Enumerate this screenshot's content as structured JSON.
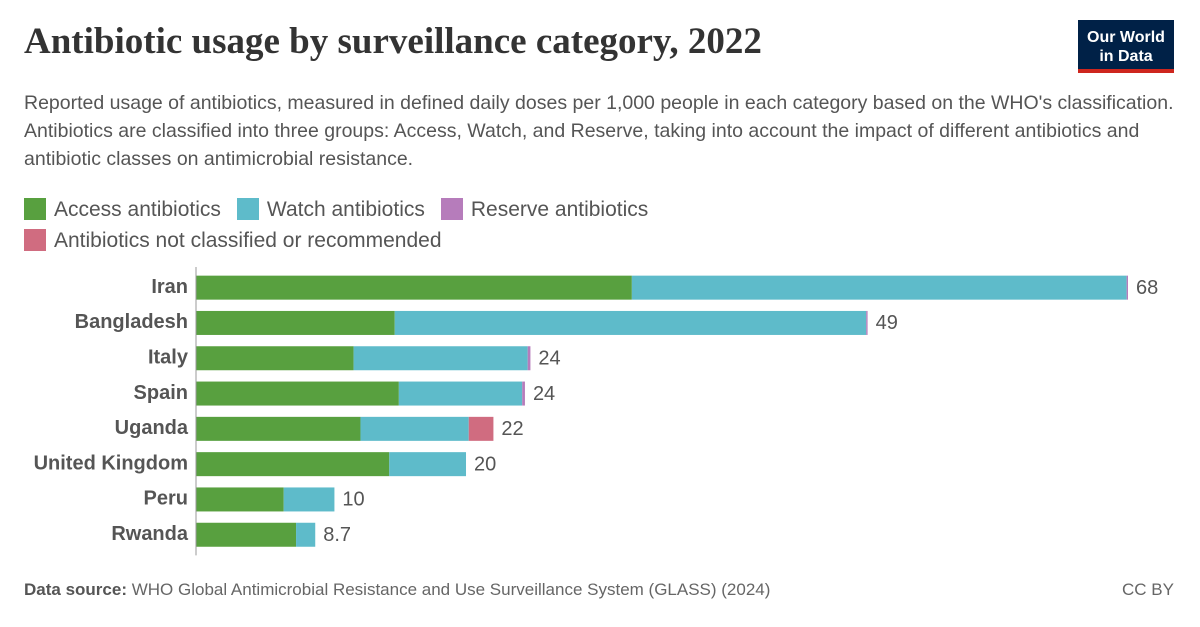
{
  "chart_data": {
    "type": "stacked_bar_horizontal",
    "title": "Antibiotic usage by surveillance category, 2022",
    "subtitle": "Reported usage of antibiotics, measured in defined daily doses per 1,000 people in each category based on the WHO's classification. Antibiotics are classified into three groups: Access, Watch, and Reserve, taking into account the impact of different antibiotics and antibiotic classes on antimicrobial resistance.",
    "logo": "Our World in Data",
    "categories": [
      "Iran",
      "Bangladesh",
      "Italy",
      "Spain",
      "Uganda",
      "United Kingdom",
      "Peru",
      "Rwanda"
    ],
    "series": [
      {
        "name": "Access antibiotics",
        "color": "#58a03f",
        "values": [
          31.8,
          14.5,
          11.5,
          14.8,
          12.0,
          14.1,
          6.4,
          7.3
        ]
      },
      {
        "name": "Watch antibiotics",
        "color": "#5ebbca",
        "values": [
          36.1,
          34.4,
          12.7,
          9.0,
          7.9,
          5.6,
          3.7,
          1.4
        ]
      },
      {
        "name": "Reserve antibiotics",
        "color": "#b67cbb",
        "values": [
          0.1,
          0.1,
          0.2,
          0.2,
          0,
          0,
          0,
          0
        ]
      },
      {
        "name": "Antibiotics not classified or recommended",
        "color": "#d06c80",
        "values": [
          0,
          0,
          0,
          0,
          1.8,
          0,
          0,
          0
        ]
      }
    ],
    "totals": [
      68,
      49,
      24,
      24,
      22,
      20,
      10,
      8.7
    ],
    "xlim": [
      0,
      68
    ],
    "source_label": "Data source:",
    "source": "WHO Global Antimicrobial Resistance and Use Surveillance System (GLASS) (2024)",
    "license": "CC BY"
  }
}
